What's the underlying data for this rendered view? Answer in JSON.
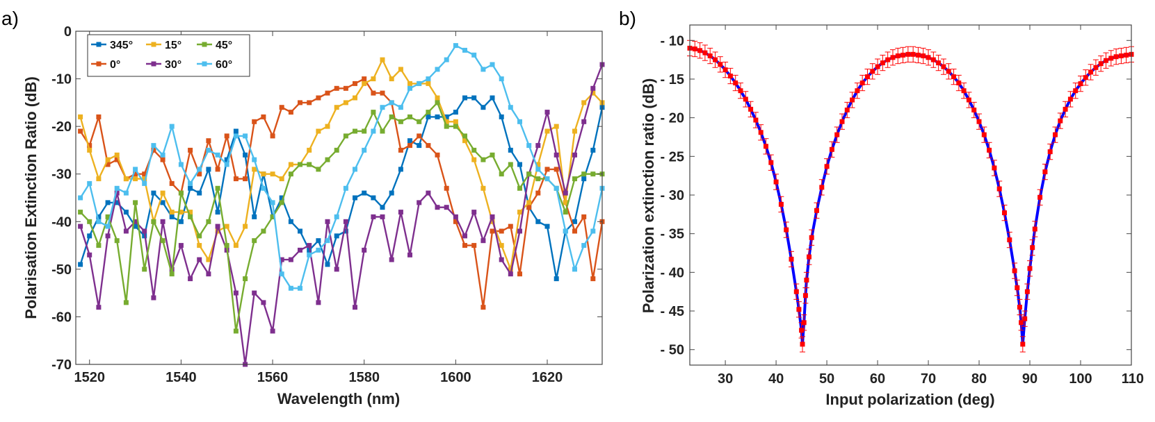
{
  "chart_data": [
    {
      "panel_label": "a)",
      "type": "line",
      "xlabel": "Wavelength (nm)",
      "ylabel": "Polarisation Extinction Ratio (dB)",
      "xlim": [
        1517,
        1632
      ],
      "ylim": [
        -70,
        0
      ],
      "xticks": [
        1520,
        1540,
        1560,
        1580,
        1600,
        1620
      ],
      "yticks": [
        0,
        -10,
        -20,
        -30,
        -40,
        -50,
        -60,
        -70
      ],
      "grid": false,
      "legend_position": "top-left",
      "legend_columns": 3,
      "x": [
        1518,
        1520,
        1522,
        1524,
        1526,
        1528,
        1530,
        1532,
        1534,
        1536,
        1538,
        1540,
        1542,
        1544,
        1546,
        1548,
        1550,
        1552,
        1554,
        1556,
        1558,
        1560,
        1562,
        1564,
        1566,
        1568,
        1570,
        1572,
        1574,
        1576,
        1578,
        1580,
        1582,
        1584,
        1586,
        1588,
        1590,
        1592,
        1594,
        1596,
        1598,
        1600,
        1602,
        1604,
        1606,
        1608,
        1610,
        1612,
        1614,
        1616,
        1618,
        1620,
        1622,
        1624,
        1626,
        1628,
        1630,
        1632
      ],
      "series": [
        {
          "name": "345°",
          "color": "#0072BD",
          "values": [
            -49,
            -43,
            -39,
            -36,
            -36,
            -38,
            -41,
            -43,
            -34,
            -36,
            -39,
            -40,
            -33,
            -34,
            -29,
            -38,
            -27,
            -21,
            -26,
            -39,
            -30,
            -39,
            -35,
            -40,
            -42,
            -46,
            -44,
            -49,
            -43,
            -42,
            -35,
            -34,
            -35,
            -37,
            -34,
            -29,
            -23,
            -24,
            -18,
            -18,
            -18,
            -17,
            -14,
            -14,
            -16,
            -14,
            -18,
            -25,
            -28,
            -37,
            -40,
            -41,
            -52,
            -42,
            -40,
            -31,
            -25,
            -16
          ]
        },
        {
          "name": "0°",
          "color": "#D95319",
          "values": [
            -21,
            -24,
            -18,
            -28,
            -27,
            -31,
            -30,
            -30,
            -25,
            -27,
            -32,
            -34,
            -25,
            -30,
            -23,
            -29,
            -22,
            -31,
            -31,
            -19,
            -18,
            -22,
            -16,
            -17,
            -15,
            -15,
            -14,
            -13,
            -12,
            -12,
            -11,
            -10,
            -13,
            -13,
            -15,
            -25,
            -24,
            -22,
            -24,
            -26,
            -33,
            -40,
            -45,
            -45,
            -58,
            -42,
            -42,
            -41,
            -51,
            -37,
            -34,
            -29,
            -29,
            -36,
            -42,
            -39,
            -52,
            -40
          ]
        },
        {
          "name": "15°",
          "color": "#EDB120",
          "values": [
            -18,
            -25,
            -31,
            -27,
            -26,
            -31,
            -31,
            -31,
            -40,
            -34,
            -38,
            -38,
            -38,
            -45,
            -48,
            -42,
            -41,
            -45,
            -41,
            -29,
            -30,
            -30,
            -31,
            -28,
            -28,
            -25,
            -21,
            -20,
            -16,
            -15,
            -14,
            -11,
            -10,
            -6,
            -10,
            -8,
            -11,
            -11,
            -11,
            -14,
            -19,
            -19,
            -23,
            -27,
            -33,
            -40,
            -45,
            -50,
            -38,
            -36,
            -28,
            -21,
            -20,
            -36,
            -21,
            -15,
            -13,
            -15
          ]
        },
        {
          "name": "30°",
          "color": "#7E2F8E",
          "values": [
            -41,
            -47,
            -58,
            -43,
            -34,
            -42,
            -40,
            -42,
            -56,
            -40,
            -50,
            -45,
            -52,
            -48,
            -51,
            -41,
            -46,
            -55,
            -70,
            -55,
            -57,
            -63,
            -48,
            -48,
            -46,
            -45,
            -57,
            -40,
            -50,
            -40,
            -58,
            -46,
            -39,
            -39,
            -48,
            -38,
            -47,
            -36,
            -34,
            -37,
            -37,
            -39,
            -43,
            -38,
            -44,
            -39,
            -48,
            -51,
            -42,
            -30,
            -24,
            -17,
            -26,
            -34,
            -26,
            -19,
            -12,
            -7
          ]
        },
        {
          "name": "45°",
          "color": "#77AC30",
          "values": [
            -38,
            -40,
            -45,
            -39,
            -44,
            -57,
            -36,
            -50,
            -40,
            -44,
            -51,
            -34,
            -39,
            -43,
            -40,
            -33,
            -45,
            -63,
            -52,
            -44,
            -42,
            -39,
            -36,
            -30,
            -28,
            -28,
            -29,
            -27,
            -25,
            -22,
            -21,
            -21,
            -17,
            -21,
            -18,
            -19,
            -18,
            -19,
            -17,
            -15,
            -20,
            -20,
            -22,
            -25,
            -27,
            -26,
            -30,
            -28,
            -33,
            -30,
            -31,
            -31,
            -33,
            -38,
            -31,
            -30,
            -30,
            -30
          ]
        },
        {
          "name": "60°",
          "color": "#4DBEEE",
          "values": [
            -35,
            -32,
            -40,
            -41,
            -33,
            -34,
            -29,
            -32,
            -24,
            -26,
            -20,
            -28,
            -32,
            -29,
            -25,
            -26,
            -28,
            -22,
            -22,
            -27,
            -33,
            -36,
            -51,
            -54,
            -54,
            -47,
            -46,
            -44,
            -39,
            -33,
            -29,
            -25,
            -21,
            -16,
            -15,
            -16,
            -12,
            -11,
            -10,
            -8,
            -6,
            -3,
            -4,
            -5,
            -8,
            -7,
            -10,
            -16,
            -19,
            -24,
            -29,
            -31,
            -33,
            -42,
            -50,
            -45,
            -42,
            -33
          ]
        }
      ]
    },
    {
      "panel_label": "b)",
      "type": "line",
      "xlabel": "Input polarization (deg)",
      "ylabel": "Polarization extinction ratio (dB)",
      "xlim": [
        23,
        110
      ],
      "ylim": [
        -52,
        -8
      ],
      "xticks": [
        30,
        40,
        50,
        60,
        70,
        80,
        90,
        100,
        110
      ],
      "yticks": [
        -10,
        -15,
        -20,
        -25,
        -30,
        -35,
        -40,
        -45,
        -50
      ],
      "ytick_labels": [
        "- 10",
        "- 15",
        "- 20",
        "- 25",
        "- 30",
        "- 35",
        "- 40",
        "- 45",
        "- 50"
      ],
      "grid": false,
      "line_color": "#0000ff",
      "marker_color": "#ff0000",
      "error_bar": 1.0,
      "x": [
        23,
        24,
        25,
        26,
        27,
        28,
        29,
        30,
        31,
        32,
        33,
        34,
        35,
        36,
        37,
        38,
        39,
        40,
        41,
        42,
        43,
        44,
        44.5,
        45,
        45.2,
        45.5,
        45.8,
        46,
        46.5,
        47,
        48,
        49,
        50,
        51,
        52,
        53,
        54,
        55,
        56,
        57,
        58,
        59,
        60,
        61,
        62,
        63,
        64,
        65,
        66,
        67,
        68,
        69,
        70,
        71,
        72,
        73,
        74,
        75,
        76,
        77,
        78,
        79,
        80,
        81,
        82,
        83,
        84,
        85,
        86,
        87,
        87.5,
        88,
        88.3,
        88.6,
        89,
        89.5,
        90,
        90.5,
        91,
        92,
        93,
        94,
        95,
        96,
        97,
        98,
        99,
        100,
        101,
        102,
        103,
        104,
        105,
        106,
        107,
        108,
        109,
        110
      ],
      "values": [
        -11,
        -11.1,
        -11.3,
        -11.6,
        -12,
        -12.5,
        -13.1,
        -13.8,
        -14.6,
        -15.5,
        -16.5,
        -17.6,
        -18.9,
        -20.3,
        -21.9,
        -23.7,
        -25.8,
        -28.3,
        -31.2,
        -34.5,
        -38.3,
        -42.5,
        -44.8,
        -47.5,
        -49.3,
        -46.5,
        -43,
        -41,
        -38,
        -35.5,
        -32,
        -29,
        -26.3,
        -24.1,
        -22.2,
        -20.5,
        -19,
        -17.7,
        -16.5,
        -15.5,
        -14.7,
        -14,
        -13.4,
        -12.9,
        -12.5,
        -12.2,
        -12,
        -11.9,
        -11.8,
        -11.8,
        -11.9,
        -12,
        -12.2,
        -12.5,
        -12.9,
        -13.4,
        -14,
        -14.7,
        -15.5,
        -16.5,
        -17.7,
        -19,
        -20.5,
        -22.2,
        -24.2,
        -26.5,
        -29.2,
        -32.3,
        -35.8,
        -39.8,
        -42,
        -44.5,
        -46.5,
        -49.3,
        -46,
        -42.5,
        -39.5,
        -36.8,
        -34.4,
        -30.3,
        -27,
        -24.4,
        -22.2,
        -20.4,
        -18.9,
        -17.6,
        -16.5,
        -15.6,
        -14.8,
        -14.1,
        -13.5,
        -13,
        -12.6,
        -12.3,
        -12.1,
        -12,
        -11.9,
        -11.8
      ]
    }
  ]
}
